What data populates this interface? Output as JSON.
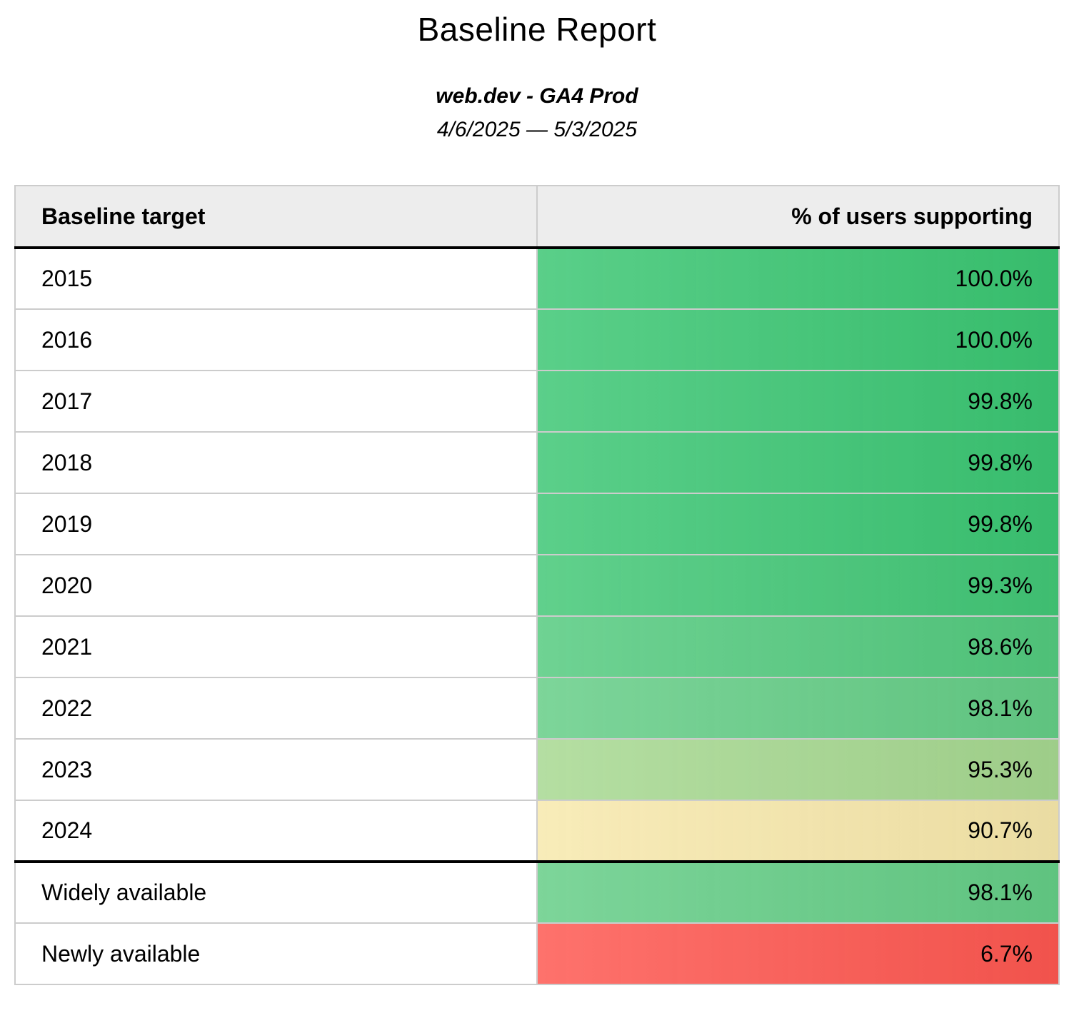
{
  "page": {
    "title": "Baseline Report",
    "subtitle": "web.dev - GA4 Prod",
    "date_range": "4/6/2025 — 5/3/2025"
  },
  "table": {
    "columns": [
      {
        "label": "Baseline target"
      },
      {
        "label": "% of users supporting"
      }
    ],
    "rows": [
      {
        "target": "2015",
        "value": "100.0%",
        "color": "#3ac672",
        "divider_after": false
      },
      {
        "target": "2016",
        "value": "100.0%",
        "color": "#3ac672",
        "divider_after": false
      },
      {
        "target": "2017",
        "value": "99.8%",
        "color": "#3bc673",
        "divider_after": false
      },
      {
        "target": "2018",
        "value": "99.8%",
        "color": "#3bc673",
        "divider_after": false
      },
      {
        "target": "2019",
        "value": "99.8%",
        "color": "#3bc673",
        "divider_after": false
      },
      {
        "target": "2020",
        "value": "99.3%",
        "color": "#42c776",
        "divider_after": false
      },
      {
        "target": "2021",
        "value": "98.6%",
        "color": "#53ca7e",
        "divider_after": false
      },
      {
        "target": "2022",
        "value": "98.1%",
        "color": "#64cd86",
        "divider_after": false
      },
      {
        "target": "2023",
        "value": "95.3%",
        "color": "#a6d890",
        "divider_after": false
      },
      {
        "target": "2024",
        "value": "90.7%",
        "color": "#f7e8ab",
        "divider_after": true
      },
      {
        "target": "Widely available",
        "value": "98.1%",
        "color": "#64cd86",
        "divider_after": false
      },
      {
        "target": "Newly available",
        "value": "6.7%",
        "color": "#fe5750",
        "divider_after": false
      }
    ],
    "colors": {
      "header_bg": "#ededed",
      "grid_border": "#cccccc",
      "section_divider": "#000000"
    }
  }
}
